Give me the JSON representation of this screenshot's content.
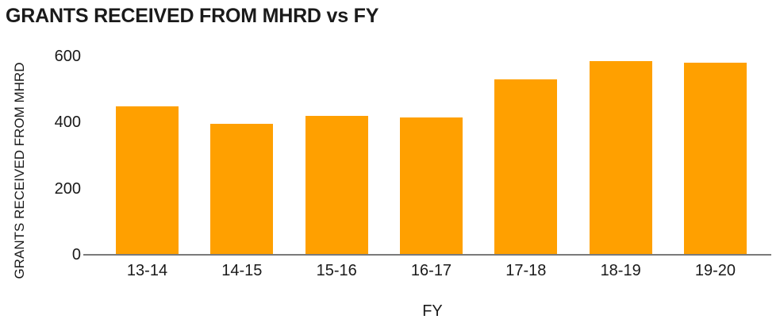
{
  "title": "GRANTS RECEIVED FROM MHRD vs FY",
  "colors": {
    "bar": "#FFA000",
    "axis_line": "#7a7a7a",
    "text": "#1a1a1a",
    "background": "#ffffff"
  },
  "chart_data": {
    "type": "bar",
    "title": "GRANTS RECEIVED FROM MHRD vs FY",
    "categories": [
      "13-14",
      "14-15",
      "15-16",
      "16-17",
      "17-18",
      "18-19",
      "19-20"
    ],
    "values": [
      450,
      395,
      420,
      415,
      530,
      585,
      580
    ],
    "xlabel": "FY",
    "ylabel": "GRANTS RECEIVED FROM MHRD",
    "ylim": [
      0,
      600
    ],
    "yticks": [
      0,
      200,
      400,
      600
    ],
    "grid": false,
    "legend": false,
    "bar_color": "#FFA000"
  }
}
